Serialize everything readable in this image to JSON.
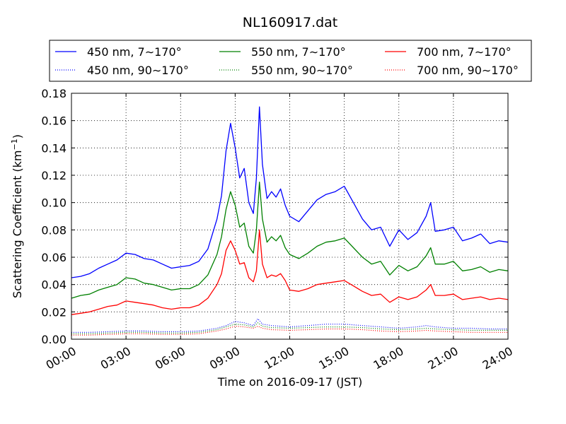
{
  "chart_data": {
    "type": "line",
    "title": "NL160917.dat",
    "xlabel": "Time on 2016-09-17 (JST)",
    "ylabel_main": "Scattering Coefficient (km",
    "ylabel_exp": "−1",
    "ylabel_close": ")",
    "xlim": [
      "00:00",
      "24:00"
    ],
    "ylim": [
      0,
      0.18
    ],
    "x_ticks": [
      "00:00",
      "03:00",
      "06:00",
      "09:00",
      "12:00",
      "15:00",
      "18:00",
      "21:00",
      "24:00"
    ],
    "y_ticks": [
      "0.00",
      "0.02",
      "0.04",
      "0.06",
      "0.08",
      "0.10",
      "0.12",
      "0.14",
      "0.16",
      "0.18"
    ],
    "grid": true,
    "legend_position": "top",
    "series": [
      {
        "name": "450 nm, 7∼170°",
        "color": "#0000ff",
        "style": "solid",
        "x": [
          "00:00",
          "00:30",
          "01:00",
          "01:30",
          "02:00",
          "02:30",
          "03:00",
          "03:30",
          "04:00",
          "04:30",
          "05:00",
          "05:30",
          "06:00",
          "06:30",
          "07:00",
          "07:30",
          "08:00",
          "08:15",
          "08:30",
          "08:45",
          "09:00",
          "09:15",
          "09:30",
          "09:45",
          "10:00",
          "10:10",
          "10:20",
          "10:30",
          "10:45",
          "11:00",
          "11:15",
          "11:30",
          "11:45",
          "12:00",
          "12:30",
          "13:00",
          "13:30",
          "14:00",
          "14:30",
          "15:00",
          "15:30",
          "16:00",
          "16:30",
          "17:00",
          "17:30",
          "18:00",
          "18:30",
          "19:00",
          "19:30",
          "19:45",
          "20:00",
          "20:30",
          "21:00",
          "21:30",
          "22:00",
          "22:30",
          "23:00",
          "23:30",
          "24:00"
        ],
        "y": [
          0.045,
          0.046,
          0.048,
          0.052,
          0.055,
          0.058,
          0.063,
          0.062,
          0.059,
          0.058,
          0.055,
          0.052,
          0.053,
          0.054,
          0.057,
          0.066,
          0.088,
          0.105,
          0.138,
          0.158,
          0.14,
          0.118,
          0.125,
          0.1,
          0.092,
          0.118,
          0.17,
          0.128,
          0.103,
          0.108,
          0.104,
          0.11,
          0.098,
          0.09,
          0.086,
          0.094,
          0.102,
          0.106,
          0.108,
          0.112,
          0.1,
          0.088,
          0.08,
          0.082,
          0.068,
          0.08,
          0.073,
          0.078,
          0.09,
          0.1,
          0.079,
          0.08,
          0.082,
          0.072,
          0.074,
          0.077,
          0.07,
          0.072,
          0.071
        ]
      },
      {
        "name": "550 nm, 7∼170°",
        "color": "#008000",
        "style": "solid",
        "x": [
          "00:00",
          "00:30",
          "01:00",
          "01:30",
          "02:00",
          "02:30",
          "03:00",
          "03:30",
          "04:00",
          "04:30",
          "05:00",
          "05:30",
          "06:00",
          "06:30",
          "07:00",
          "07:30",
          "08:00",
          "08:15",
          "08:30",
          "08:45",
          "09:00",
          "09:15",
          "09:30",
          "09:45",
          "10:00",
          "10:10",
          "10:20",
          "10:30",
          "10:45",
          "11:00",
          "11:15",
          "11:30",
          "11:45",
          "12:00",
          "12:30",
          "13:00",
          "13:30",
          "14:00",
          "14:30",
          "15:00",
          "15:30",
          "16:00",
          "16:30",
          "17:00",
          "17:30",
          "18:00",
          "18:30",
          "19:00",
          "19:30",
          "19:45",
          "20:00",
          "20:30",
          "21:00",
          "21:30",
          "22:00",
          "22:30",
          "23:00",
          "23:30",
          "24:00"
        ],
        "y": [
          0.03,
          0.032,
          0.033,
          0.036,
          0.038,
          0.04,
          0.045,
          0.044,
          0.041,
          0.04,
          0.038,
          0.036,
          0.037,
          0.037,
          0.04,
          0.047,
          0.062,
          0.075,
          0.095,
          0.108,
          0.098,
          0.082,
          0.085,
          0.068,
          0.063,
          0.08,
          0.115,
          0.088,
          0.071,
          0.075,
          0.072,
          0.076,
          0.067,
          0.062,
          0.059,
          0.063,
          0.068,
          0.071,
          0.072,
          0.074,
          0.067,
          0.06,
          0.055,
          0.057,
          0.047,
          0.054,
          0.05,
          0.053,
          0.061,
          0.067,
          0.055,
          0.055,
          0.057,
          0.05,
          0.051,
          0.053,
          0.049,
          0.051,
          0.05
        ]
      },
      {
        "name": "700 nm, 7∼170°",
        "color": "#ff0000",
        "style": "solid",
        "x": [
          "00:00",
          "00:30",
          "01:00",
          "01:30",
          "02:00",
          "02:30",
          "03:00",
          "03:30",
          "04:00",
          "04:30",
          "05:00",
          "05:30",
          "06:00",
          "06:30",
          "07:00",
          "07:30",
          "08:00",
          "08:15",
          "08:30",
          "08:45",
          "09:00",
          "09:15",
          "09:30",
          "09:45",
          "10:00",
          "10:10",
          "10:20",
          "10:30",
          "10:45",
          "11:00",
          "11:15",
          "11:30",
          "11:45",
          "12:00",
          "12:30",
          "13:00",
          "13:30",
          "14:00",
          "14:30",
          "15:00",
          "15:30",
          "16:00",
          "16:30",
          "17:00",
          "17:30",
          "18:00",
          "18:30",
          "19:00",
          "19:30",
          "19:45",
          "20:00",
          "20:30",
          "21:00",
          "21:30",
          "22:00",
          "22:30",
          "23:00",
          "23:30",
          "24:00"
        ],
        "y": [
          0.018,
          0.019,
          0.02,
          0.022,
          0.024,
          0.025,
          0.028,
          0.027,
          0.026,
          0.025,
          0.023,
          0.022,
          0.023,
          0.023,
          0.025,
          0.03,
          0.04,
          0.048,
          0.065,
          0.072,
          0.065,
          0.055,
          0.056,
          0.045,
          0.042,
          0.05,
          0.08,
          0.055,
          0.045,
          0.047,
          0.046,
          0.048,
          0.043,
          0.036,
          0.035,
          0.037,
          0.04,
          0.041,
          0.042,
          0.043,
          0.039,
          0.035,
          0.032,
          0.033,
          0.027,
          0.031,
          0.029,
          0.031,
          0.036,
          0.04,
          0.032,
          0.032,
          0.033,
          0.029,
          0.03,
          0.031,
          0.029,
          0.03,
          0.029
        ]
      },
      {
        "name": "450 nm, 90∼170°",
        "color": "#0000ff",
        "style": "dotted",
        "x": [
          "00:00",
          "01:00",
          "02:00",
          "03:00",
          "04:00",
          "05:00",
          "06:00",
          "07:00",
          "08:00",
          "08:30",
          "09:00",
          "09:30",
          "10:00",
          "10:15",
          "10:30",
          "11:00",
          "12:00",
          "13:00",
          "14:00",
          "15:00",
          "16:00",
          "17:00",
          "18:00",
          "19:00",
          "19:30",
          "20:00",
          "21:00",
          "22:00",
          "23:00",
          "24:00"
        ],
        "y": [
          0.005,
          0.005,
          0.0055,
          0.006,
          0.006,
          0.0055,
          0.0055,
          0.006,
          0.008,
          0.01,
          0.013,
          0.012,
          0.01,
          0.015,
          0.011,
          0.01,
          0.009,
          0.01,
          0.011,
          0.011,
          0.01,
          0.009,
          0.008,
          0.009,
          0.01,
          0.009,
          0.008,
          0.008,
          0.0075,
          0.0075
        ]
      },
      {
        "name": "550 nm, 90∼170°",
        "color": "#008000",
        "style": "dotted",
        "x": [
          "00:00",
          "01:00",
          "02:00",
          "03:00",
          "04:00",
          "05:00",
          "06:00",
          "07:00",
          "08:00",
          "08:30",
          "09:00",
          "09:30",
          "10:00",
          "10:15",
          "10:30",
          "11:00",
          "12:00",
          "13:00",
          "14:00",
          "15:00",
          "16:00",
          "17:00",
          "18:00",
          "19:00",
          "19:30",
          "20:00",
          "21:00",
          "22:00",
          "23:00",
          "24:00"
        ],
        "y": [
          0.004,
          0.004,
          0.0045,
          0.005,
          0.005,
          0.0045,
          0.0045,
          0.005,
          0.007,
          0.009,
          0.011,
          0.0105,
          0.009,
          0.012,
          0.0095,
          0.0085,
          0.008,
          0.0085,
          0.009,
          0.009,
          0.0085,
          0.0075,
          0.007,
          0.0075,
          0.008,
          0.0075,
          0.007,
          0.0065,
          0.0065,
          0.0065
        ]
      },
      {
        "name": "700 nm, 90∼170°",
        "color": "#ff0000",
        "style": "dotted",
        "x": [
          "00:00",
          "01:00",
          "02:00",
          "03:00",
          "04:00",
          "05:00",
          "06:00",
          "07:00",
          "08:00",
          "08:30",
          "09:00",
          "09:30",
          "10:00",
          "10:15",
          "10:30",
          "11:00",
          "12:00",
          "13:00",
          "14:00",
          "15:00",
          "16:00",
          "17:00",
          "18:00",
          "19:00",
          "19:30",
          "20:00",
          "21:00",
          "22:00",
          "23:00",
          "24:00"
        ],
        "y": [
          0.003,
          0.003,
          0.0035,
          0.004,
          0.004,
          0.0035,
          0.0035,
          0.004,
          0.006,
          0.0075,
          0.0095,
          0.009,
          0.008,
          0.0095,
          0.008,
          0.007,
          0.0065,
          0.007,
          0.0075,
          0.0075,
          0.007,
          0.006,
          0.0055,
          0.006,
          0.0065,
          0.006,
          0.0055,
          0.005,
          0.005,
          0.005
        ]
      }
    ],
    "legend_order": [
      0,
      1,
      2,
      3,
      4,
      5
    ]
  }
}
